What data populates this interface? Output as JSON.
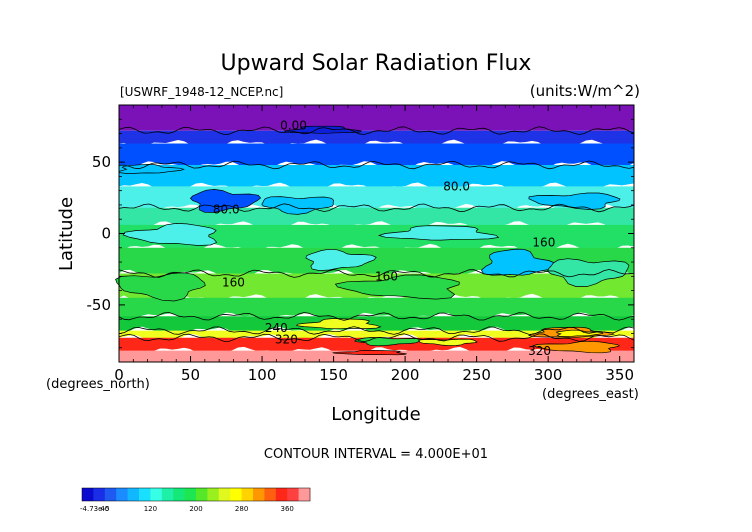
{
  "chart_data": {
    "type": "heatmap",
    "title": "Upward Solar Radiation Flux",
    "file_label": "[USWRF_1948-12_NCEP.nc]",
    "units_label": "(units:W/m^2)",
    "xlabel": "Longitude",
    "ylabel": "Latitude",
    "x_unit_label": "(degrees_east)",
    "y_unit_label": "(degrees_north)",
    "xlim": [
      0,
      360
    ],
    "ylim": [
      -90,
      90
    ],
    "x_ticks": [
      0,
      50,
      100,
      150,
      200,
      250,
      300,
      350
    ],
    "y_ticks": [
      50,
      0,
      -50
    ],
    "contour_interval_text": "CONTOUR INTERVAL = 4.000E+01",
    "contour_labels": [
      {
        "text": "0.00",
        "lon": 122,
        "lat": 73
      },
      {
        "text": "80.0",
        "lon": 75,
        "lat": 14
      },
      {
        "text": "80.0",
        "lon": 236,
        "lat": 30
      },
      {
        "text": "160",
        "lon": 297,
        "lat": -9
      },
      {
        "text": "160",
        "lon": 187,
        "lat": -33
      },
      {
        "text": "160",
        "lon": 80,
        "lat": -37
      },
      {
        "text": "240",
        "lon": 110,
        "lat": -69
      },
      {
        "text": "320",
        "lon": 117,
        "lat": -77
      },
      {
        "text": "320",
        "lon": 294,
        "lat": -85
      }
    ],
    "colorbar": {
      "min_label": "-4.73e-5",
      "tick_labels": [
        "40",
        "120",
        "200",
        "280",
        "360"
      ],
      "tick_values": [
        40,
        120,
        200,
        280,
        360
      ],
      "range": [
        0,
        400
      ],
      "colors": [
        "#0b0bd0",
        "#1a2ee8",
        "#1e5af0",
        "#1a8cff",
        "#12b8ff",
        "#1ae0ff",
        "#36ffe6",
        "#1ef0a8",
        "#14e878",
        "#1ee650",
        "#54e828",
        "#9af01e",
        "#e0f81e",
        "#ffff00",
        "#ffd200",
        "#ff9800",
        "#ff6010",
        "#ff2818",
        "#ff4040",
        "#ff9898"
      ]
    },
    "bands": [
      {
        "lat_top": 90,
        "lat_bottom": 72,
        "color": "#7a12b8"
      },
      {
        "lat_top": 72,
        "lat_bottom": 63,
        "color": "#1e32e6"
      },
      {
        "lat_top": 63,
        "lat_bottom": 48,
        "color": "#0050ff"
      },
      {
        "lat_top": 48,
        "lat_bottom": 33,
        "color": "#00c3ff"
      },
      {
        "lat_top": 33,
        "lat_bottom": 18,
        "color": "#4cf0e8"
      },
      {
        "lat_top": 18,
        "lat_bottom": 6,
        "color": "#34e6a6"
      },
      {
        "lat_top": 6,
        "lat_bottom": -10,
        "color": "#22e066"
      },
      {
        "lat_top": -10,
        "lat_bottom": -28,
        "color": "#28d848"
      },
      {
        "lat_top": -28,
        "lat_bottom": -45,
        "color": "#72e830"
      },
      {
        "lat_top": -45,
        "lat_bottom": -58,
        "color": "#28d848"
      },
      {
        "lat_top": -58,
        "lat_bottom": -68,
        "color": "#14c83c"
      },
      {
        "lat_top": -68,
        "lat_bottom": -73,
        "color": "#f0ff20"
      },
      {
        "lat_top": -73,
        "lat_bottom": -82,
        "color": "#ff2818"
      },
      {
        "lat_top": -82,
        "lat_bottom": -90,
        "color": "#ff9898"
      }
    ],
    "patches": [
      {
        "lon": [
          120,
          165
        ],
        "lat": [
          70,
          75
        ],
        "color": "#0b20d8"
      },
      {
        "lon": [
          0,
          40
        ],
        "lat": [
          42,
          48
        ],
        "color": "#00c3ff"
      },
      {
        "lon": [
          50,
          95
        ],
        "lat": [
          16,
          30
        ],
        "color": "#0050ff"
      },
      {
        "lon": [
          100,
          150
        ],
        "lat": [
          15,
          26
        ],
        "color": "#00c3ff"
      },
      {
        "lon": [
          290,
          350
        ],
        "lat": [
          18,
          28
        ],
        "color": "#00c3ff"
      },
      {
        "lon": [
          10,
          70
        ],
        "lat": [
          -8,
          6
        ],
        "color": "#4cf0e8"
      },
      {
        "lon": [
          190,
          260
        ],
        "lat": [
          -5,
          5
        ],
        "color": "#4cf0e8"
      },
      {
        "lon": [
          255,
          300
        ],
        "lat": [
          -30,
          -12
        ],
        "color": "#00c3ff"
      },
      {
        "lon": [
          130,
          175
        ],
        "lat": [
          -25,
          -12
        ],
        "color": "#4cf0e8"
      },
      {
        "lon": [
          300,
          355
        ],
        "lat": [
          -35,
          -18
        ],
        "color": "#34e6a6"
      },
      {
        "lon": [
          0,
          60
        ],
        "lat": [
          -45,
          -28
        ],
        "color": "#28d848"
      },
      {
        "lon": [
          160,
          240
        ],
        "lat": [
          -45,
          -30
        ],
        "color": "#28d848"
      },
      {
        "lon": [
          130,
          180
        ],
        "lat": [
          -67,
          -60
        ],
        "color": "#f0ff20"
      },
      {
        "lon": [
          290,
          340
        ],
        "lat": [
          -73,
          -66
        ],
        "color": "#ff9800"
      },
      {
        "lon": [
          305,
          335
        ],
        "lat": [
          -72,
          -68
        ],
        "color": "#ffff00"
      },
      {
        "lon": [
          165,
          210
        ],
        "lat": [
          -78,
          -73
        ],
        "color": "#28d848"
      },
      {
        "lon": [
          210,
          250
        ],
        "lat": [
          -78,
          -74
        ],
        "color": "#f0ff20"
      },
      {
        "lon": [
          295,
          350
        ],
        "lat": [
          -83,
          -76
        ],
        "color": "#ff9800"
      },
      {
        "lon": [
          155,
          200
        ],
        "lat": [
          -85,
          -82
        ],
        "color": "#ff2818"
      }
    ]
  }
}
